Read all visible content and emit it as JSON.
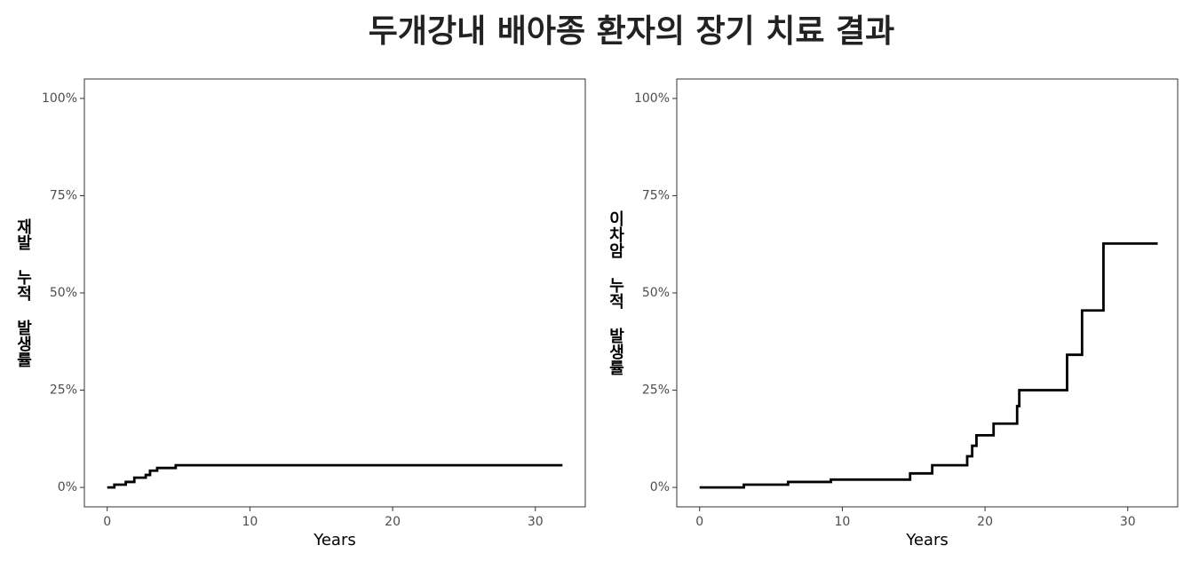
{
  "title": "두개강내 배아종 환자의 장기 치료 결과",
  "chart_data": [
    {
      "type": "step",
      "xlabel": "Years",
      "ylabel": "재발 누적 발생률",
      "color": "#000000",
      "x": [
        0,
        0.5,
        1.3,
        1.9,
        2.7,
        3.0,
        3.5,
        4.8,
        31.9
      ],
      "values": [
        0,
        0.7,
        1.4,
        2.5,
        3.2,
        4.3,
        5.0,
        5.7,
        5.7
      ],
      "xlim": [
        -1.6,
        33.5
      ],
      "xticks": [
        0,
        10,
        20,
        30
      ],
      "ylim": [
        -5,
        105
      ],
      "yticks": [
        {
          "value": 0,
          "label": "0%"
        },
        {
          "value": 25,
          "label": "25%"
        },
        {
          "value": 50,
          "label": "50%"
        },
        {
          "value": 75,
          "label": "75%"
        },
        {
          "value": 100,
          "label": "100%"
        }
      ]
    },
    {
      "type": "step",
      "xlabel": "Years",
      "ylabel": "이차암 누적 발생률",
      "color": "#000000",
      "x": [
        0,
        3.1,
        6.2,
        9.2,
        14.75,
        16.3,
        18.75,
        19.1,
        19.4,
        20.6,
        22.25,
        22.4,
        25.75,
        26.8,
        28.3,
        32.1
      ],
      "values": [
        0,
        0.7,
        1.4,
        2.0,
        3.6,
        5.7,
        8.0,
        10.7,
        13.4,
        16.4,
        20.9,
        25.0,
        34.1,
        45.5,
        62.7,
        62.7
      ],
      "xlim": [
        -1.6,
        33.5
      ],
      "xticks": [
        0,
        10,
        20,
        30
      ],
      "ylim": [
        -5,
        105
      ],
      "yticks": [
        {
          "value": 0,
          "label": "0%"
        },
        {
          "value": 25,
          "label": "25%"
        },
        {
          "value": 50,
          "label": "50%"
        },
        {
          "value": 75,
          "label": "75%"
        },
        {
          "value": 100,
          "label": "100%"
        }
      ]
    }
  ]
}
